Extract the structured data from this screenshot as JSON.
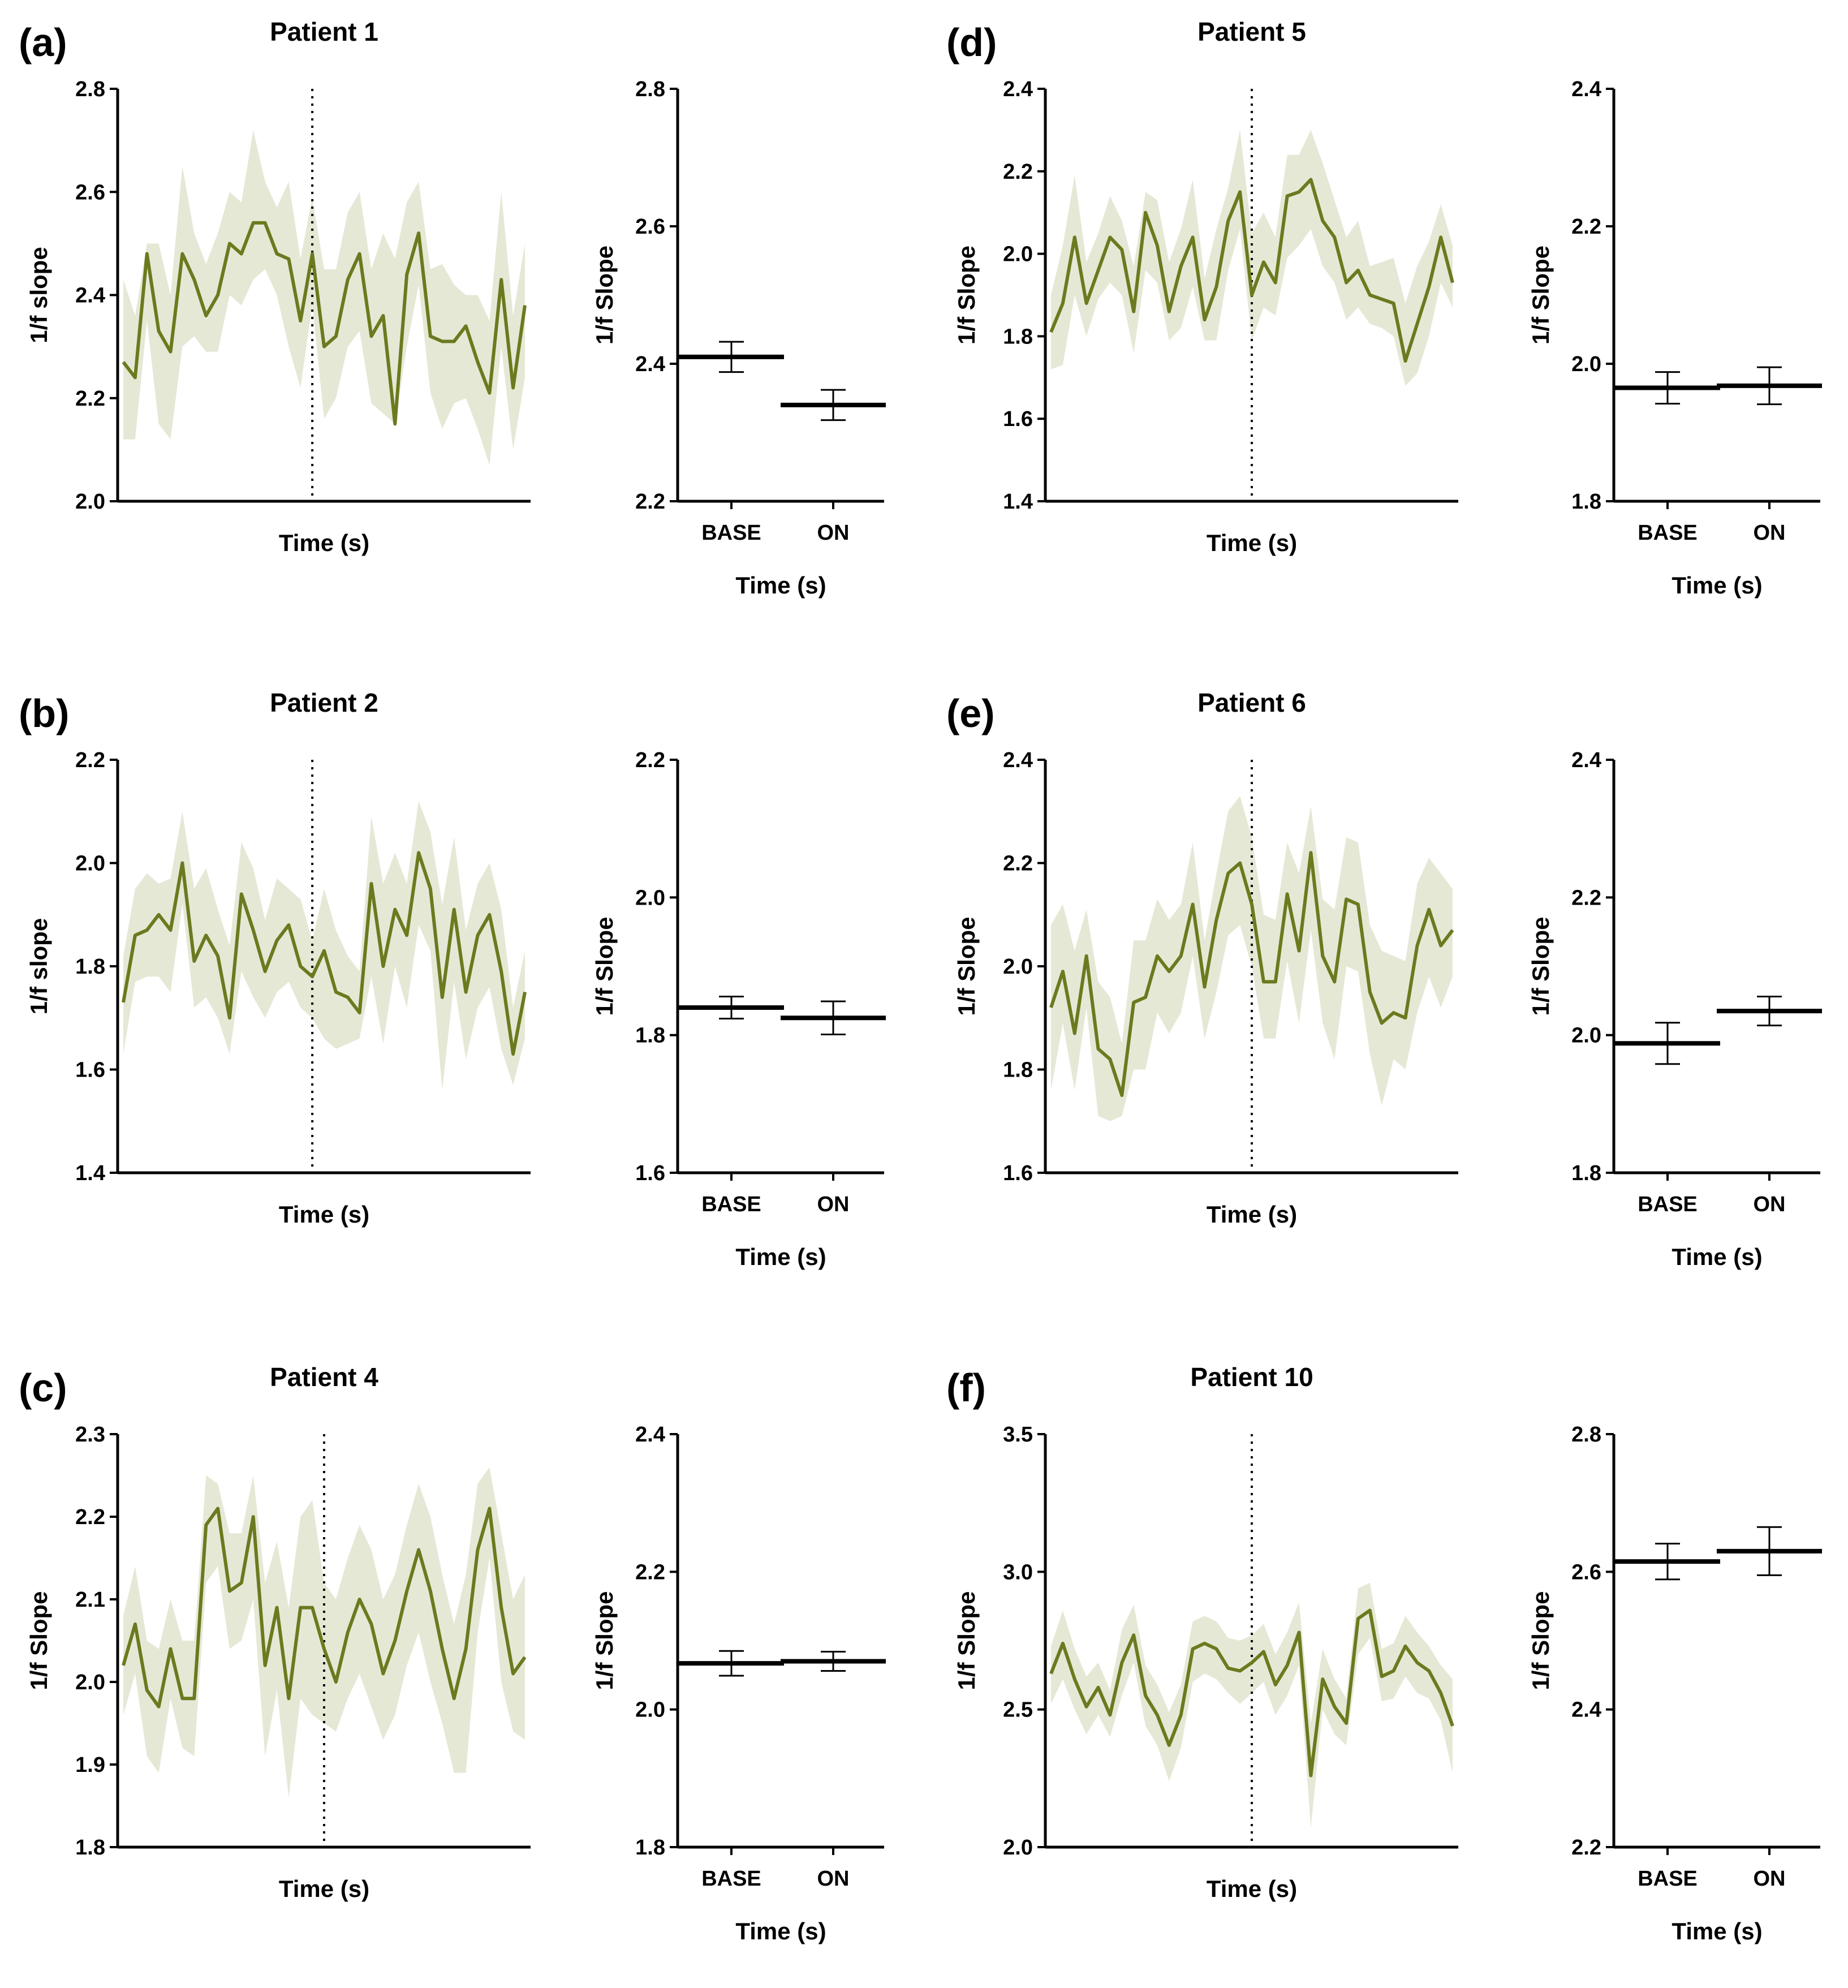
{
  "figure": {
    "line_color": "#6b7a1e",
    "band_color": "#e6e8d6"
  },
  "chart_data": [
    {
      "panel": "(a)",
      "title": "Patient 1",
      "type": "line",
      "xlabel": "Time (s)",
      "ylabel": "1/f slope",
      "ylim": [
        2.0,
        2.8
      ],
      "yticks": [
        "2.0",
        "2.2",
        "2.4",
        "2.6",
        "2.8"
      ],
      "series": [
        {
          "values": [
            2.27,
            2.24,
            2.48,
            2.33,
            2.29,
            2.48,
            2.43,
            2.36,
            2.4,
            2.5,
            2.48,
            2.54,
            2.54,
            2.48,
            2.47,
            2.35,
            2.48,
            2.3,
            2.32,
            2.43,
            2.48,
            2.32,
            2.36,
            2.15,
            2.44,
            2.52,
            2.32,
            2.31,
            2.31,
            2.34,
            2.27,
            2.21,
            2.43,
            2.22,
            2.38
          ],
          "lower": [
            2.12,
            2.12,
            2.35,
            2.15,
            2.12,
            2.3,
            2.32,
            2.29,
            2.29,
            2.4,
            2.38,
            2.43,
            2.45,
            2.4,
            2.3,
            2.22,
            2.38,
            2.16,
            2.2,
            2.3,
            2.33,
            2.19,
            2.17,
            2.15,
            2.3,
            2.42,
            2.21,
            2.14,
            2.19,
            2.2,
            2.14,
            2.07,
            2.3,
            2.1,
            2.24
          ],
          "upper": [
            2.43,
            2.36,
            2.5,
            2.5,
            2.4,
            2.65,
            2.52,
            2.46,
            2.52,
            2.6,
            2.58,
            2.72,
            2.62,
            2.57,
            2.62,
            2.47,
            2.59,
            2.45,
            2.45,
            2.56,
            2.6,
            2.45,
            2.52,
            2.47,
            2.58,
            2.62,
            2.45,
            2.46,
            2.42,
            2.4,
            2.4,
            2.35,
            2.6,
            2.36,
            2.5
          ]
        }
      ],
      "marker_index": 16
    },
    {
      "panel": "",
      "title": "",
      "type": "bar",
      "xlabel": "Time (s)",
      "ylabel": "1/f Slope",
      "ylim": [
        2.2,
        2.8
      ],
      "yticks": [
        "2.2",
        "2.4",
        "2.6",
        "2.8"
      ],
      "categories": [
        "BASE",
        "ON"
      ],
      "values": [
        2.41,
        2.34
      ],
      "errors": [
        0.022,
        0.022
      ]
    },
    {
      "panel": "(b)",
      "title": "Patient 2",
      "type": "line",
      "xlabel": "Time (s)",
      "ylabel": "1/f slope",
      "ylim": [
        1.4,
        2.2
      ],
      "yticks": [
        "1.4",
        "1.6",
        "1.8",
        "2.0",
        "2.2"
      ],
      "series": [
        {
          "values": [
            1.73,
            1.86,
            1.87,
            1.9,
            1.87,
            2.0,
            1.81,
            1.86,
            1.82,
            1.7,
            1.94,
            1.87,
            1.79,
            1.85,
            1.88,
            1.8,
            1.78,
            1.83,
            1.75,
            1.74,
            1.71,
            1.96,
            1.8,
            1.91,
            1.86,
            2.02,
            1.95,
            1.74,
            1.91,
            1.75,
            1.86,
            1.9,
            1.79,
            1.63,
            1.75
          ],
          "lower": [
            1.63,
            1.77,
            1.78,
            1.78,
            1.75,
            1.92,
            1.72,
            1.74,
            1.7,
            1.63,
            1.79,
            1.74,
            1.7,
            1.75,
            1.77,
            1.72,
            1.7,
            1.66,
            1.64,
            1.65,
            1.66,
            1.78,
            1.65,
            1.8,
            1.72,
            1.88,
            1.83,
            1.56,
            1.77,
            1.62,
            1.72,
            1.76,
            1.64,
            1.57,
            1.66
          ],
          "upper": [
            1.82,
            1.95,
            1.98,
            1.96,
            1.97,
            2.1,
            1.95,
            1.99,
            1.91,
            1.84,
            2.04,
            1.99,
            1.89,
            1.97,
            1.95,
            1.93,
            1.85,
            1.95,
            1.87,
            1.82,
            1.79,
            2.09,
            1.96,
            2.02,
            1.96,
            2.12,
            2.06,
            1.92,
            2.05,
            1.87,
            1.96,
            2.0,
            1.91,
            1.72,
            1.83
          ]
        }
      ],
      "marker_index": 16
    },
    {
      "panel": "",
      "title": "",
      "type": "bar",
      "xlabel": "Time (s)",
      "ylabel": "1/f Slope",
      "ylim": [
        1.6,
        2.2
      ],
      "yticks": [
        "1.6",
        "1.8",
        "2.0",
        "2.2"
      ],
      "categories": [
        "BASE",
        "ON"
      ],
      "values": [
        1.84,
        1.825
      ],
      "errors": [
        0.016,
        0.024
      ]
    },
    {
      "panel": "(c)",
      "title": "Patient 4",
      "type": "line",
      "xlabel": "Time (s)",
      "ylabel": "1/f Slope",
      "ylim": [
        1.8,
        2.3
      ],
      "yticks": [
        "1.8",
        "1.9",
        "2.0",
        "2.1",
        "2.2",
        "2.3"
      ],
      "series": [
        {
          "values": [
            2.02,
            2.07,
            1.99,
            1.97,
            2.04,
            1.98,
            1.98,
            2.19,
            2.21,
            2.11,
            2.12,
            2.2,
            2.02,
            2.09,
            1.98,
            2.09,
            2.09,
            2.04,
            2.0,
            2.06,
            2.1,
            2.07,
            2.01,
            2.05,
            2.11,
            2.16,
            2.11,
            2.04,
            1.98,
            2.04,
            2.16,
            2.21,
            2.09,
            2.01,
            2.03
          ],
          "lower": [
            1.96,
            2.01,
            1.91,
            1.89,
            1.98,
            1.92,
            1.91,
            2.12,
            2.14,
            2.04,
            2.05,
            2.1,
            1.91,
            1.99,
            1.86,
            1.98,
            1.96,
            1.95,
            1.94,
            1.98,
            2.01,
            1.97,
            1.93,
            1.96,
            2.02,
            2.06,
            2.0,
            1.95,
            1.89,
            1.89,
            2.06,
            2.15,
            2.0,
            1.94,
            1.93
          ],
          "upper": [
            2.08,
            2.14,
            2.05,
            2.04,
            2.1,
            2.05,
            2.05,
            2.25,
            2.24,
            2.18,
            2.18,
            2.25,
            2.12,
            2.17,
            2.09,
            2.2,
            2.22,
            2.12,
            2.1,
            2.15,
            2.19,
            2.16,
            2.1,
            2.13,
            2.19,
            2.24,
            2.2,
            2.13,
            2.07,
            2.13,
            2.24,
            2.26,
            2.18,
            2.1,
            2.13
          ]
        }
      ],
      "marker_index": 17
    },
    {
      "panel": "",
      "title": "",
      "type": "bar",
      "xlabel": "Time (s)",
      "ylabel": "1/f Slope",
      "ylim": [
        1.8,
        2.4
      ],
      "yticks": [
        "1.8",
        "2.0",
        "2.2",
        "2.4"
      ],
      "categories": [
        "BASE",
        "ON"
      ],
      "values": [
        2.067,
        2.07
      ],
      "errors": [
        0.018,
        0.014
      ]
    },
    {
      "panel": "(d)",
      "title": "Patient 5",
      "type": "line",
      "xlabel": "Time (s)",
      "ylabel": "1/f Slope",
      "ylim": [
        1.4,
        2.4
      ],
      "yticks": [
        "1.4",
        "1.6",
        "1.8",
        "2.0",
        "2.2",
        "2.4"
      ],
      "series": [
        {
          "values": [
            1.81,
            1.88,
            2.04,
            1.88,
            1.96,
            2.04,
            2.01,
            1.86,
            2.1,
            2.02,
            1.86,
            1.97,
            2.04,
            1.84,
            1.92,
            2.08,
            2.15,
            1.9,
            1.98,
            1.93,
            2.14,
            2.15,
            2.18,
            2.08,
            2.04,
            1.93,
            1.96,
            1.9,
            1.89,
            1.88,
            1.74,
            1.83,
            1.92,
            2.04,
            1.93
          ],
          "lower": [
            1.72,
            1.73,
            1.9,
            1.8,
            1.89,
            1.93,
            1.9,
            1.76,
            1.96,
            1.93,
            1.79,
            1.82,
            1.92,
            1.79,
            1.79,
            1.96,
            2.06,
            1.79,
            1.87,
            1.85,
            1.99,
            2.02,
            2.06,
            1.97,
            1.93,
            1.84,
            1.87,
            1.83,
            1.82,
            1.8,
            1.68,
            1.71,
            1.8,
            1.93,
            1.87
          ],
          "upper": [
            1.9,
            2.02,
            2.19,
            1.98,
            2.05,
            2.14,
            2.08,
            1.97,
            2.15,
            2.13,
            1.98,
            2.06,
            2.18,
            1.94,
            2.06,
            2.16,
            2.3,
            2.05,
            2.1,
            2.04,
            2.24,
            2.24,
            2.3,
            2.22,
            2.13,
            2.04,
            2.08,
            1.97,
            1.98,
            1.99,
            1.88,
            1.97,
            2.03,
            2.12,
            2.02
          ]
        }
      ],
      "marker_index": 17
    },
    {
      "panel": "",
      "title": "",
      "type": "bar",
      "xlabel": "Time (s)",
      "ylabel": "1/f Slope",
      "ylim": [
        1.8,
        2.4
      ],
      "yticks": [
        "1.8",
        "2.0",
        "2.2",
        "2.4"
      ],
      "categories": [
        "BASE",
        "ON"
      ],
      "values": [
        1.965,
        1.968
      ],
      "errors": [
        0.023,
        0.027
      ]
    },
    {
      "panel": "(e)",
      "title": "Patient 6",
      "type": "line",
      "xlabel": "Time (s)",
      "ylabel": "1/f Slope",
      "ylim": [
        1.6,
        2.4
      ],
      "yticks": [
        "1.6",
        "1.8",
        "2.0",
        "2.2",
        "2.4"
      ],
      "series": [
        {
          "values": [
            1.92,
            1.99,
            1.87,
            2.02,
            1.84,
            1.82,
            1.75,
            1.93,
            1.94,
            2.02,
            1.99,
            2.02,
            2.12,
            1.96,
            2.09,
            2.18,
            2.2,
            2.12,
            1.97,
            1.97,
            2.14,
            2.03,
            2.22,
            2.02,
            1.97,
            2.13,
            2.12,
            1.95,
            1.89,
            1.91,
            1.9,
            2.04,
            2.11,
            2.04,
            2.07
          ],
          "lower": [
            1.76,
            1.89,
            1.76,
            1.92,
            1.71,
            1.7,
            1.71,
            1.8,
            1.8,
            1.91,
            1.87,
            1.91,
            2.02,
            1.86,
            1.95,
            2.06,
            2.08,
            2.0,
            1.86,
            1.86,
            2.01,
            1.89,
            2.07,
            1.89,
            1.82,
            2.0,
            1.99,
            1.83,
            1.73,
            1.82,
            1.8,
            1.91,
            1.98,
            1.92,
            1.98
          ],
          "upper": [
            2.08,
            2.12,
            2.03,
            2.11,
            1.97,
            1.94,
            1.85,
            2.05,
            2.05,
            2.13,
            2.09,
            2.12,
            2.24,
            2.05,
            2.18,
            2.3,
            2.33,
            2.25,
            2.1,
            2.09,
            2.24,
            2.18,
            2.31,
            2.13,
            2.11,
            2.25,
            2.24,
            2.08,
            2.03,
            2.02,
            2.01,
            2.16,
            2.21,
            2.18,
            2.15
          ]
        }
      ],
      "marker_index": 17
    },
    {
      "panel": "",
      "title": "",
      "type": "bar",
      "xlabel": "Time (s)",
      "ylabel": "1/f Slope",
      "ylim": [
        1.8,
        2.4
      ],
      "yticks": [
        "1.8",
        "2.0",
        "2.2",
        "2.4"
      ],
      "categories": [
        "BASE",
        "ON"
      ],
      "values": [
        1.988,
        2.035
      ],
      "errors": [
        0.03,
        0.021
      ]
    },
    {
      "panel": "(f)",
      "title": "Patient 10",
      "type": "line",
      "xlabel": "Time (s)",
      "ylabel": "1/f Slope",
      "ylim": [
        2.0,
        3.5
      ],
      "yticks": [
        "2.0",
        "2.5",
        "3.0",
        "3.5"
      ],
      "series": [
        {
          "values": [
            2.63,
            2.74,
            2.61,
            2.51,
            2.58,
            2.48,
            2.67,
            2.77,
            2.55,
            2.48,
            2.37,
            2.48,
            2.72,
            2.74,
            2.72,
            2.65,
            2.64,
            2.67,
            2.71,
            2.59,
            2.66,
            2.78,
            2.26,
            2.61,
            2.51,
            2.45,
            2.83,
            2.86,
            2.62,
            2.64,
            2.73,
            2.67,
            2.64,
            2.56,
            2.44
          ],
          "lower": [
            2.52,
            2.61,
            2.5,
            2.41,
            2.48,
            2.4,
            2.55,
            2.67,
            2.44,
            2.37,
            2.24,
            2.36,
            2.6,
            2.63,
            2.61,
            2.56,
            2.52,
            2.56,
            2.6,
            2.48,
            2.55,
            2.66,
            2.07,
            2.5,
            2.41,
            2.37,
            2.7,
            2.76,
            2.53,
            2.54,
            2.62,
            2.56,
            2.54,
            2.46,
            2.27
          ],
          "upper": [
            2.73,
            2.86,
            2.72,
            2.62,
            2.67,
            2.57,
            2.79,
            2.88,
            2.66,
            2.59,
            2.49,
            2.59,
            2.82,
            2.84,
            2.82,
            2.76,
            2.75,
            2.77,
            2.81,
            2.7,
            2.78,
            2.89,
            2.45,
            2.72,
            2.61,
            2.54,
            2.94,
            2.96,
            2.72,
            2.74,
            2.84,
            2.78,
            2.73,
            2.66,
            2.61
          ]
        }
      ],
      "marker_index": 17
    },
    {
      "panel": "",
      "title": "",
      "type": "bar",
      "xlabel": "Time (s)",
      "ylabel": "1/f Slope",
      "ylim": [
        2.2,
        2.8
      ],
      "yticks": [
        "2.2",
        "2.4",
        "2.6",
        "2.8"
      ],
      "categories": [
        "BASE",
        "ON"
      ],
      "values": [
        2.615,
        2.63
      ],
      "errors": [
        0.026,
        0.035
      ]
    }
  ]
}
